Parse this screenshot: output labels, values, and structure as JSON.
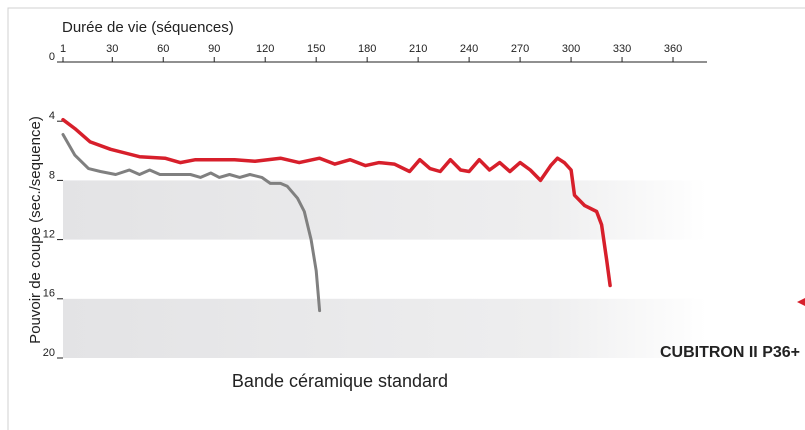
{
  "chart_data": {
    "type": "line",
    "xlabel": "Durée de vie (séquences)",
    "ylabel": "Pouvoir de coupe (sec./sequence)",
    "xlim": [
      1,
      380
    ],
    "xticks": [
      1,
      30,
      60,
      90,
      120,
      150,
      180,
      210,
      240,
      270,
      300,
      330,
      360
    ],
    "ylim": [
      0,
      20
    ],
    "yticks": [
      0,
      4,
      8,
      12,
      16,
      20
    ],
    "y_inverted": true,
    "x_axis_top": true,
    "series": [
      {
        "name": "CUBITRON II P36+",
        "color": "#d71f2b",
        "x": [
          1,
          8,
          17,
          29,
          46,
          61,
          70,
          79,
          90,
          102,
          114,
          129,
          140,
          152,
          161,
          170,
          179,
          187,
          196,
          205,
          211,
          217,
          223,
          229,
          235,
          240,
          246,
          252,
          258,
          264,
          270,
          276,
          282,
          288,
          292,
          296,
          300,
          302,
          308,
          315,
          318,
          321,
          323
        ],
        "values": [
          3.9,
          4.5,
          5.4,
          5.9,
          6.4,
          6.5,
          6.8,
          6.6,
          6.6,
          6.6,
          6.7,
          6.5,
          6.8,
          6.5,
          6.9,
          6.6,
          7.0,
          6.8,
          6.9,
          7.4,
          6.6,
          7.2,
          7.4,
          6.6,
          7.3,
          7.4,
          6.6,
          7.3,
          6.8,
          7.4,
          6.8,
          7.3,
          8.0,
          7.0,
          6.5,
          6.8,
          7.3,
          9.0,
          9.7,
          10.1,
          11.0,
          13.4,
          15.1
        ]
      },
      {
        "name": "Bande céramique standard",
        "color": "#808080",
        "x": [
          1,
          8,
          16,
          23,
          32,
          40,
          46,
          52,
          58,
          67,
          76,
          82,
          88,
          93,
          99,
          105,
          111,
          118,
          123,
          129,
          133,
          139,
          143,
          147,
          150,
          152
        ],
        "values": [
          4.9,
          6.3,
          7.2,
          7.4,
          7.6,
          7.3,
          7.6,
          7.3,
          7.6,
          7.6,
          7.6,
          7.8,
          7.5,
          7.8,
          7.6,
          7.8,
          7.6,
          7.8,
          8.2,
          8.2,
          8.4,
          9.2,
          10.1,
          12.0,
          14.1,
          16.8
        ]
      }
    ]
  }
}
